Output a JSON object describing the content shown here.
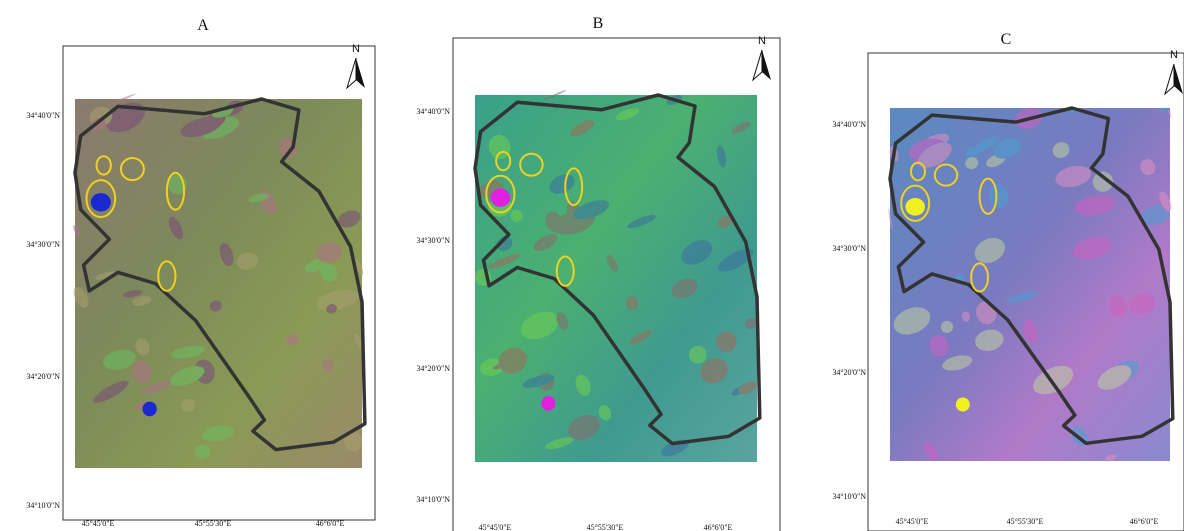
{
  "panels": [
    {
      "label": "A",
      "north": "N",
      "lat_labels": [
        "34°40'0\"N",
        "34°30'0\"N",
        "34°20'0\"N",
        "34°10'0\"N"
      ],
      "lon_labels": [
        "45°45'0\"E",
        "45°55'30\"E",
        "46°6'0\"E"
      ]
    },
    {
      "label": "B",
      "north": "N",
      "lat_labels": [
        "34°40'0\"N",
        "34°30'0\"N",
        "34°20'0\"N",
        "34°10'0\"N"
      ],
      "lon_labels": [
        "45°45'0\"E",
        "45°55'30\"E",
        "46°6'0\"E"
      ]
    },
    {
      "label": "C",
      "north": "N",
      "lat_labels": [
        "34°40'0\"N",
        "34°30'0\"N",
        "34°20'0\"N",
        "34°10'0\"N"
      ],
      "lon_labels": [
        "45°45'0\"E",
        "45°55'30\"E",
        "46°6'0\"E"
      ]
    }
  ]
}
